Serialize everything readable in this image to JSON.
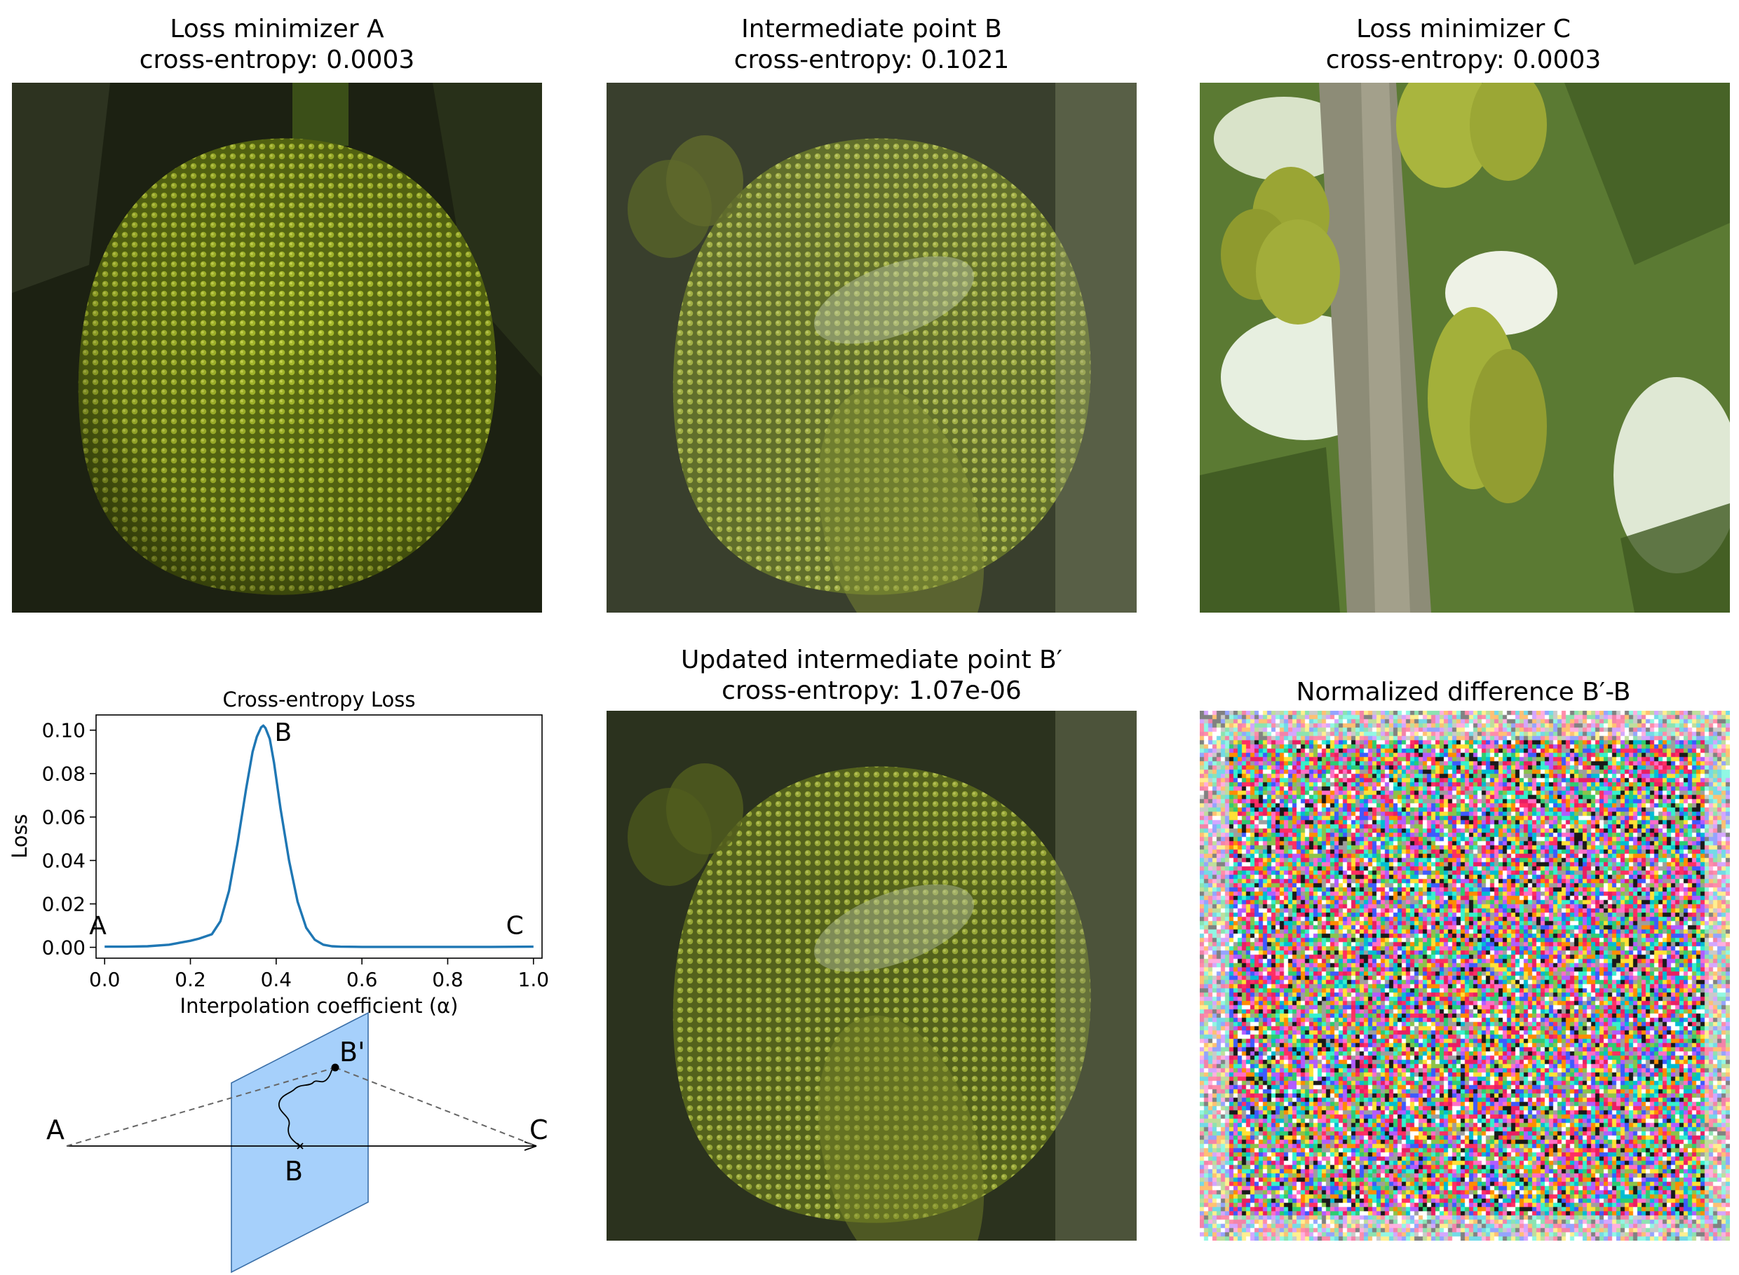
{
  "panels": {
    "a": {
      "title": "Loss minimizer A",
      "subtitle": "cross-entropy: 0.0003"
    },
    "b": {
      "title": "Intermediate point B",
      "subtitle": "cross-entropy: 0.1021"
    },
    "c": {
      "title": "Loss minimizer C",
      "subtitle": "cross-entropy: 0.0003"
    },
    "bprime": {
      "title": "Updated intermediate point B′",
      "subtitle": "cross-entropy: 1.07e-06"
    },
    "diff": {
      "title": "Normalized difference  B′-B"
    }
  },
  "chart_data": {
    "type": "line",
    "title": "Cross-entropy Loss",
    "xlabel": "Interpolation coefficient (α)",
    "ylabel": "Loss",
    "xlim": [
      -0.02,
      1.02
    ],
    "ylim": [
      -0.005,
      0.107
    ],
    "xticks": [
      "0.0",
      "0.2",
      "0.4",
      "0.6",
      "0.8",
      "1.0"
    ],
    "yticks": [
      "0.00",
      "0.02",
      "0.04",
      "0.06",
      "0.08",
      "0.10"
    ],
    "series": [
      {
        "color": "#1f77b4",
        "x": [
          0.0,
          0.05,
          0.1,
          0.15,
          0.2,
          0.22,
          0.25,
          0.27,
          0.29,
          0.31,
          0.33,
          0.345,
          0.355,
          0.365,
          0.37,
          0.375,
          0.385,
          0.395,
          0.41,
          0.43,
          0.45,
          0.47,
          0.49,
          0.51,
          0.53,
          0.55,
          0.6,
          0.7,
          0.8,
          0.9,
          1.0
        ],
        "y": [
          0.0003,
          0.0003,
          0.0005,
          0.0012,
          0.003,
          0.004,
          0.006,
          0.012,
          0.026,
          0.048,
          0.073,
          0.09,
          0.097,
          0.1013,
          0.1021,
          0.101,
          0.096,
          0.085,
          0.064,
          0.04,
          0.021,
          0.009,
          0.0035,
          0.0012,
          0.0005,
          0.0003,
          0.0002,
          0.0002,
          0.0002,
          0.0002,
          0.0003
        ]
      }
    ],
    "point_labels": [
      {
        "text": "A",
        "x": 0.0,
        "y": 0.0003
      },
      {
        "text": "B",
        "x": 0.37,
        "y": 0.1021
      },
      {
        "text": "C",
        "x": 1.0,
        "y": 0.0003
      }
    ],
    "grid": false
  },
  "diagram": {
    "labels": {
      "a": "A",
      "b": "B",
      "bprime": "B'",
      "c": "C"
    },
    "plane_color": "#a6d0fb",
    "plane_edge": "#3a6fa8"
  }
}
